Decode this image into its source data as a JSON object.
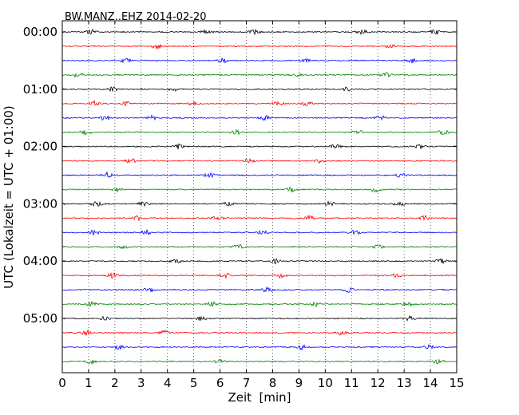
{
  "chart_data": {
    "type": "line",
    "subtype": "dayplot-seismogram",
    "title": "BW.MANZ..EHZ 2014-02-20",
    "xlabel": "Zeit  [min]",
    "ylabel": "UTC (Lokalzeit = UTC + 01:00)",
    "xlim": [
      0,
      15
    ],
    "x_ticks": [
      0,
      1,
      2,
      3,
      4,
      5,
      6,
      7,
      8,
      9,
      10,
      11,
      12,
      13,
      14,
      15
    ],
    "y_tick_labels": [
      "00:00",
      "01:00",
      "02:00",
      "03:00",
      "04:00",
      "05:00"
    ],
    "traces_per_hour": 4,
    "trace_minutes": 15,
    "trace_count": 24,
    "grid": {
      "x": "dotted-vertical",
      "y": false
    },
    "trace_colors": [
      "#000000",
      "#ff0000",
      "#0000ff",
      "#008000"
    ],
    "bursts_note_free": true,
    "bursts": [
      [
        1.1,
        5.5,
        7.3,
        11.4,
        14.2
      ],
      [
        3.6,
        12.5
      ],
      [
        2.4,
        6.1,
        9.2,
        13.3
      ],
      [
        0.6,
        8.9,
        12.3
      ],
      [
        1.9,
        4.2,
        10.8
      ],
      [
        1.2,
        2.4,
        5.0,
        8.2,
        9.3
      ],
      [
        1.6,
        3.4,
        7.7,
        12.1
      ],
      [
        0.9,
        6.6,
        11.2,
        14.5
      ],
      [
        4.4,
        10.4,
        13.6
      ],
      [
        2.6,
        7.1,
        9.8
      ],
      [
        1.7,
        5.6,
        12.9
      ],
      [
        2.1,
        8.7,
        11.9
      ],
      [
        1.3,
        3.1,
        6.3,
        10.2,
        12.8
      ],
      [
        2.9,
        5.9,
        9.4,
        13.8
      ],
      [
        1.2,
        3.2,
        7.6,
        11.1
      ],
      [
        2.3,
        6.7,
        12.0
      ],
      [
        4.3,
        8.1,
        14.4
      ],
      [
        1.9,
        6.2,
        8.3,
        12.7
      ],
      [
        3.3,
        7.8,
        10.9
      ],
      [
        1.1,
        5.7,
        9.6,
        13.1
      ],
      [
        1.6,
        5.3,
        13.2
      ],
      [
        0.9,
        3.9,
        10.6
      ],
      [
        2.2,
        9.1,
        14.0
      ],
      [
        1.1,
        6.0,
        14.3
      ]
    ]
  }
}
